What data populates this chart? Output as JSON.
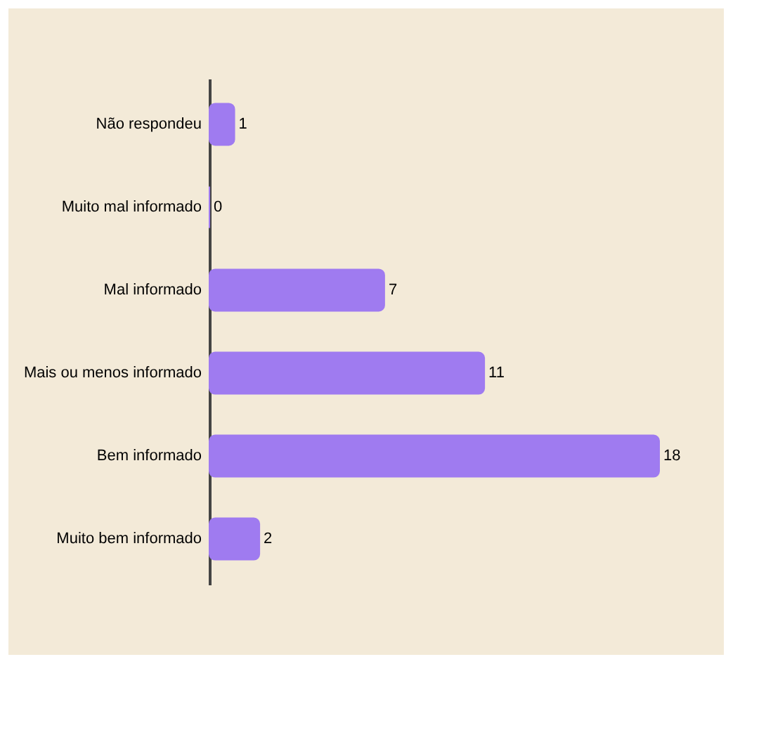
{
  "chart_data": {
    "type": "bar",
    "orientation": "horizontal",
    "categories": [
      "Não respondeu",
      "Muito mal informado",
      "Mal informado",
      "Mais ou menos informado",
      "Bem informado",
      "Muito bem informado"
    ],
    "values": [
      1,
      0,
      7,
      11,
      18,
      2
    ],
    "color": "#9f7bf0",
    "data_labels": true,
    "tick_labels": "y"
  }
}
